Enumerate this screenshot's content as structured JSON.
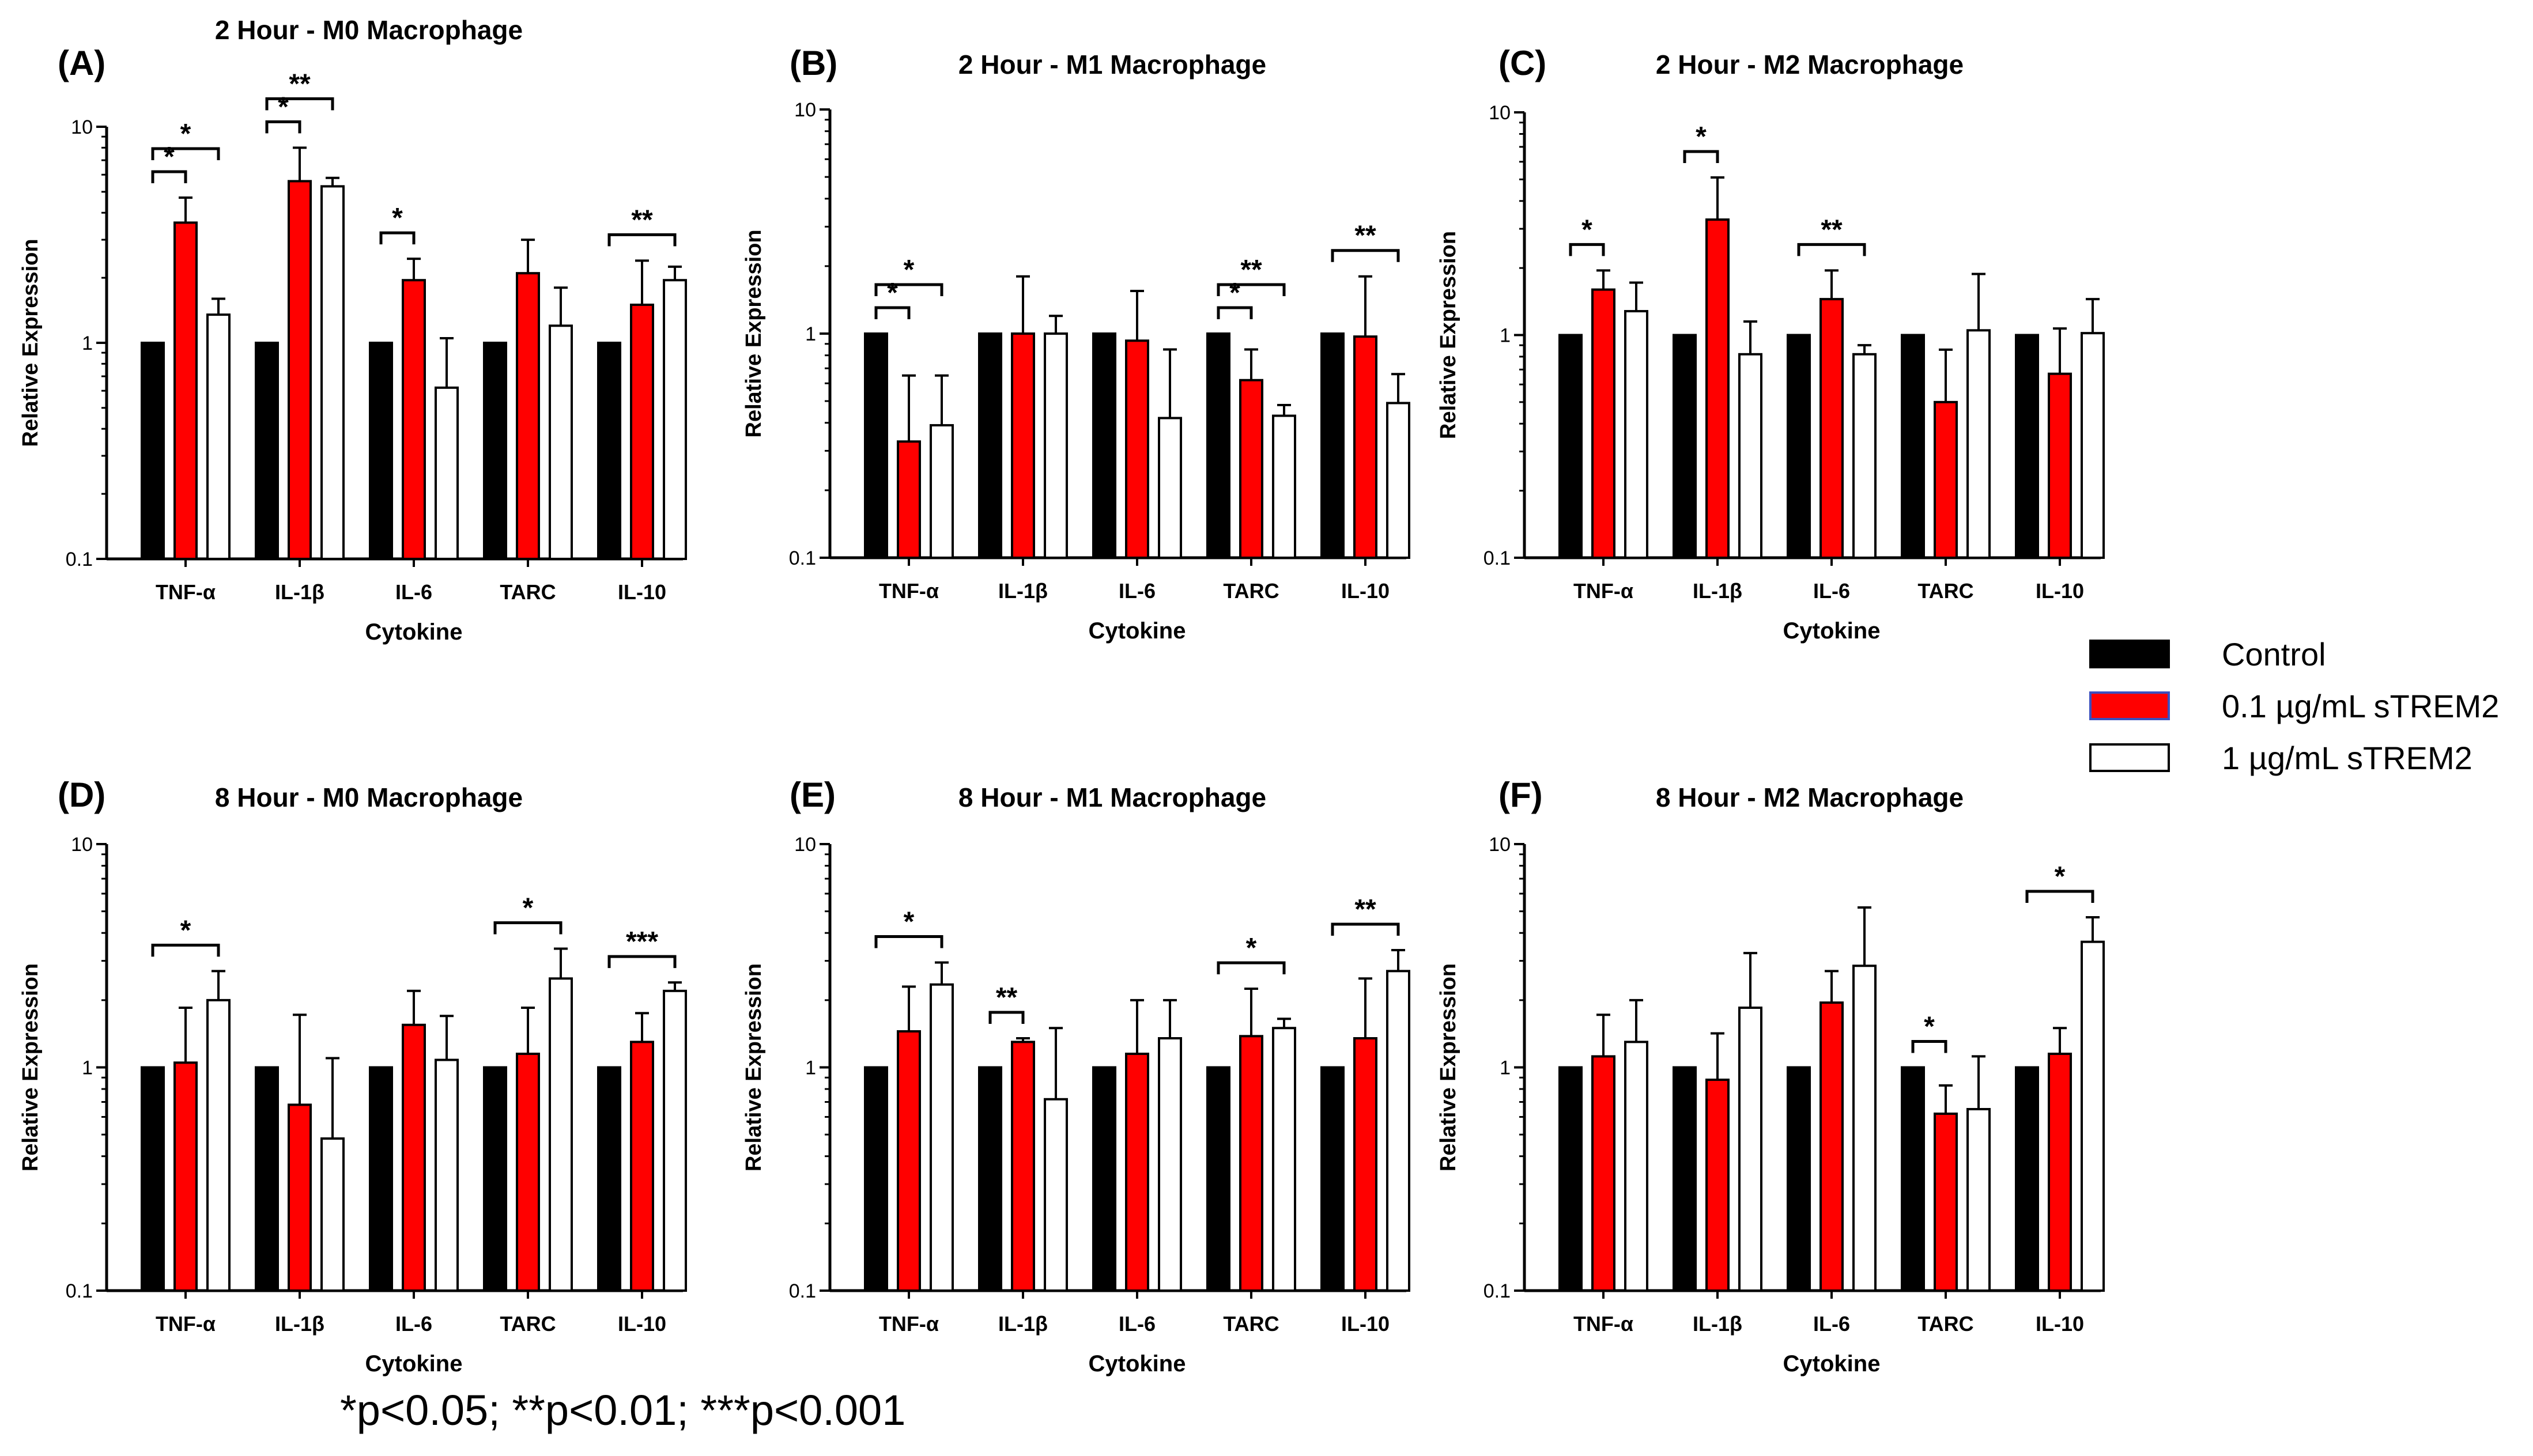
{
  "legend": {
    "items": [
      {
        "label": "Control",
        "fill": "#000000",
        "stroke": "#000000"
      },
      {
        "label": "0.1 µg/mL sTREM2",
        "fill": "#ff0000",
        "stroke": "#3b4fbf"
      },
      {
        "label": "1 µg/mL sTREM2",
        "fill": "#ffffff",
        "stroke": "#000000"
      }
    ]
  },
  "footnote": "*p<0.05; **p<0.01; ***p<0.001",
  "colors": {
    "control": "#000000",
    "low": "#ff0000",
    "high": "#ffffff",
    "axis": "#000000"
  },
  "chart_data": [
    {
      "type": "bar",
      "panel": "(A)",
      "title": "2 Hour -  M0 Macrophage",
      "xlabel": "Cytokine",
      "ylabel": "Relative Expression",
      "yscale": "log",
      "ylim": [
        0.1,
        10
      ],
      "yticks": [
        "0.1",
        "1",
        "10"
      ],
      "categories": [
        "TNF-α",
        "IL-1β",
        "IL-6",
        "TARC",
        "IL-10"
      ],
      "series": [
        {
          "name": "Control",
          "values": [
            1,
            1,
            1,
            1,
            1
          ],
          "errors": [
            null,
            null,
            null,
            null,
            null
          ]
        },
        {
          "name": "0.1 µg/mL sTREM2",
          "values": [
            3.6,
            5.6,
            1.95,
            2.1,
            1.5
          ],
          "errors": [
            4.7,
            8.0,
            2.45,
            3.0,
            2.4
          ]
        },
        {
          "name": "1 µg/mL sTREM2",
          "values": [
            1.35,
            5.3,
            0.62,
            1.2,
            1.95
          ],
          "errors": [
            1.6,
            5.8,
            1.05,
            1.8,
            2.25
          ]
        }
      ],
      "significance": [
        {
          "group": 0,
          "from": 0,
          "to": 1,
          "level": 0,
          "label": "*"
        },
        {
          "group": 0,
          "from": 0,
          "to": 2,
          "level": 1,
          "label": "*"
        },
        {
          "group": 1,
          "from": 0,
          "to": 1,
          "level": 0,
          "label": "*"
        },
        {
          "group": 1,
          "from": 0,
          "to": 2,
          "level": 1,
          "label": "**"
        },
        {
          "group": 2,
          "from": 0,
          "to": 1,
          "level": 0,
          "label": "*"
        },
        {
          "group": 4,
          "from": 0,
          "to": 2,
          "level": 0,
          "label": "**"
        }
      ]
    },
    {
      "type": "bar",
      "panel": "(B)",
      "title": "2 Hour - M1 Macrophage",
      "xlabel": "Cytokine",
      "ylabel": "Relative Expression",
      "yscale": "log",
      "ylim": [
        0.1,
        10
      ],
      "yticks": [
        "0.1",
        "1",
        "10"
      ],
      "categories": [
        "TNF-α",
        "IL-1β",
        "IL-6",
        "TARC",
        "IL-10"
      ],
      "series": [
        {
          "name": "Control",
          "values": [
            1,
            1,
            1,
            1,
            1
          ],
          "errors": [
            null,
            null,
            null,
            null,
            null
          ]
        },
        {
          "name": "0.1 µg/mL sTREM2",
          "values": [
            0.33,
            1.0,
            0.93,
            0.62,
            0.97
          ],
          "errors": [
            0.65,
            1.8,
            1.55,
            0.85,
            1.8
          ]
        },
        {
          "name": "1 µg/mL sTREM2",
          "values": [
            0.39,
            1.0,
            0.42,
            0.43,
            0.49
          ],
          "errors": [
            0.65,
            1.2,
            0.85,
            0.48,
            0.66
          ]
        }
      ],
      "significance": [
        {
          "group": 0,
          "from": 0,
          "to": 1,
          "level": 0,
          "label": "*"
        },
        {
          "group": 0,
          "from": 0,
          "to": 2,
          "level": 1,
          "label": "*"
        },
        {
          "group": 3,
          "from": 0,
          "to": 1,
          "level": 0,
          "label": "*"
        },
        {
          "group": 3,
          "from": 0,
          "to": 2,
          "level": 1,
          "label": "**"
        },
        {
          "group": 4,
          "from": 0,
          "to": 2,
          "level": 0,
          "label": "**"
        }
      ]
    },
    {
      "type": "bar",
      "panel": "(C)",
      "title": "2 Hour - M2 Macrophage",
      "xlabel": "Cytokine",
      "ylabel": "Relative Expression",
      "yscale": "log",
      "ylim": [
        0.1,
        10
      ],
      "yticks": [
        "0.1",
        "1",
        "10"
      ],
      "categories": [
        "TNF-α",
        "IL-1β",
        "IL-6",
        "TARC",
        "IL-10"
      ],
      "series": [
        {
          "name": "Control",
          "values": [
            1,
            1,
            1,
            1,
            1
          ],
          "errors": [
            null,
            null,
            null,
            null,
            null
          ]
        },
        {
          "name": "0.1 µg/mL sTREM2",
          "values": [
            1.6,
            3.3,
            1.45,
            0.5,
            0.67
          ],
          "errors": [
            1.95,
            5.1,
            1.95,
            0.86,
            1.07
          ]
        },
        {
          "name": "1 µg/mL sTREM2",
          "values": [
            1.28,
            0.82,
            0.82,
            1.05,
            1.02
          ],
          "errors": [
            1.72,
            1.15,
            0.9,
            1.88,
            1.45
          ]
        }
      ],
      "significance": [
        {
          "group": 0,
          "from": 0,
          "to": 1,
          "level": 0,
          "label": "*"
        },
        {
          "group": 1,
          "from": 0,
          "to": 1,
          "level": 0,
          "label": "*"
        },
        {
          "group": 2,
          "from": 0,
          "to": 2,
          "level": 0,
          "label": "**"
        }
      ]
    },
    {
      "type": "bar",
      "panel": "(D)",
      "title": "8 Hour - M0 Macrophage",
      "xlabel": "Cytokine",
      "ylabel": "Relative Expression",
      "yscale": "log",
      "ylim": [
        0.1,
        10
      ],
      "yticks": [
        "0.1",
        "1",
        "10"
      ],
      "categories": [
        "TNF-α",
        "IL-1β",
        "IL-6",
        "TARC",
        "IL-10"
      ],
      "series": [
        {
          "name": "Control",
          "values": [
            1,
            1,
            1,
            1,
            1
          ],
          "errors": [
            null,
            null,
            null,
            null,
            null
          ]
        },
        {
          "name": "0.1 µg/mL sTREM2",
          "values": [
            1.05,
            0.68,
            1.55,
            1.15,
            1.3
          ],
          "errors": [
            1.85,
            1.72,
            2.2,
            1.85,
            1.75
          ]
        },
        {
          "name": "1 µg/mL sTREM2",
          "values": [
            2.0,
            0.48,
            1.08,
            2.5,
            2.2
          ],
          "errors": [
            2.7,
            1.1,
            1.7,
            3.4,
            2.4
          ]
        }
      ],
      "significance": [
        {
          "group": 0,
          "from": 0,
          "to": 2,
          "level": 0,
          "label": "*"
        },
        {
          "group": 3,
          "from": 0,
          "to": 2,
          "level": 0,
          "label": "*"
        },
        {
          "group": 4,
          "from": 0,
          "to": 2,
          "level": 0,
          "label": "***"
        }
      ]
    },
    {
      "type": "bar",
      "panel": "(E)",
      "title": "8 Hour - M1 Macrophage",
      "xlabel": "Cytokine",
      "ylabel": "Relative Expression",
      "yscale": "log",
      "ylim": [
        0.1,
        10
      ],
      "yticks": [
        "0.1",
        "1",
        "10"
      ],
      "categories": [
        "TNF-α",
        "IL-1β",
        "IL-6",
        "TARC",
        "IL-10"
      ],
      "series": [
        {
          "name": "Control",
          "values": [
            1,
            1,
            1,
            1,
            1
          ],
          "errors": [
            null,
            null,
            null,
            null,
            null
          ]
        },
        {
          "name": "0.1 µg/mL sTREM2",
          "values": [
            1.45,
            1.3,
            1.15,
            1.38,
            1.35
          ],
          "errors": [
            2.3,
            1.35,
            2.0,
            2.25,
            2.5
          ]
        },
        {
          "name": "1 µg/mL sTREM2",
          "values": [
            2.35,
            0.72,
            1.35,
            1.5,
            2.7
          ],
          "errors": [
            2.95,
            1.5,
            2.0,
            1.65,
            3.35
          ]
        }
      ],
      "significance": [
        {
          "group": 0,
          "from": 0,
          "to": 2,
          "level": 0,
          "label": "*"
        },
        {
          "group": 1,
          "from": 0,
          "to": 1,
          "level": 0,
          "label": "**"
        },
        {
          "group": 3,
          "from": 0,
          "to": 2,
          "level": 0,
          "label": "*"
        },
        {
          "group": 4,
          "from": 0,
          "to": 2,
          "level": 0,
          "label": "**"
        }
      ]
    },
    {
      "type": "bar",
      "panel": "(F)",
      "title": "8 Hour - M2 Macrophage",
      "xlabel": "Cytokine",
      "ylabel": "Relative Expression",
      "yscale": "log",
      "ylim": [
        0.1,
        10
      ],
      "yticks": [
        "0.1",
        "1",
        "10"
      ],
      "categories": [
        "TNF-α",
        "IL-1β",
        "IL-6",
        "TARC",
        "IL-10"
      ],
      "series": [
        {
          "name": "Control",
          "values": [
            1,
            1,
            1,
            1,
            1
          ],
          "errors": [
            null,
            null,
            null,
            null,
            null
          ]
        },
        {
          "name": "0.1 µg/mL sTREM2",
          "values": [
            1.12,
            0.88,
            1.95,
            0.62,
            1.15
          ],
          "errors": [
            1.72,
            1.42,
            2.7,
            0.83,
            1.5
          ]
        },
        {
          "name": "1 µg/mL sTREM2",
          "values": [
            1.3,
            1.85,
            2.85,
            0.65,
            3.65
          ],
          "errors": [
            2.0,
            3.25,
            5.2,
            1.12,
            4.7
          ]
        }
      ],
      "significance": [
        {
          "group": 3,
          "from": 0,
          "to": 1,
          "level": 0,
          "label": "*"
        },
        {
          "group": 4,
          "from": 0,
          "to": 2,
          "level": 0,
          "label": "*"
        }
      ]
    }
  ]
}
